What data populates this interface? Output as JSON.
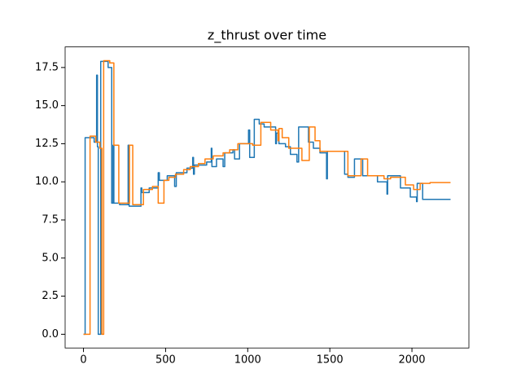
{
  "chart_data": {
    "type": "line",
    "title": "z_thrust over time",
    "xlim": [
      -111.75,
      2346.75
    ],
    "xticks": [
      0,
      500,
      1000,
      1500,
      2000
    ],
    "ylim": [
      -0.9,
      18.85
    ],
    "yticks": [
      {
        "value": 0,
        "label": "0.0"
      },
      {
        "value": 2.5,
        "label": "2.5"
      },
      {
        "value": 5,
        "label": "5.0"
      },
      {
        "value": 7.5,
        "label": "7.5"
      },
      {
        "value": 10,
        "label": "10.0"
      },
      {
        "value": 12.5,
        "label": "12.5"
      },
      {
        "value": 15,
        "label": "15.0"
      },
      {
        "value": 17.5,
        "label": "17.5"
      }
    ],
    "series": [
      {
        "color": "#1f77b4",
        "x": [
          0,
          10,
          10,
          65,
          65,
          80,
          80,
          85,
          85,
          90,
          90,
          105,
          105,
          150,
          150,
          172,
          172,
          180,
          180,
          185,
          185,
          220,
          220,
          272,
          272,
          278,
          278,
          350,
          350,
          355,
          355,
          400,
          400,
          455,
          455,
          462,
          462,
          510,
          510,
          555,
          555,
          565,
          565,
          630,
          630,
          665,
          665,
          670,
          670,
          675,
          675,
          750,
          750,
          778,
          778,
          782,
          782,
          810,
          810,
          850,
          850,
          860,
          860,
          910,
          910,
          920,
          920,
          950,
          950,
          1005,
          1005,
          1012,
          1012,
          1040,
          1040,
          1070,
          1070,
          1100,
          1100,
          1170,
          1170,
          1175,
          1175,
          1190,
          1190,
          1230,
          1230,
          1260,
          1260,
          1300,
          1300,
          1310,
          1310,
          1370,
          1370,
          1400,
          1400,
          1440,
          1440,
          1480,
          1480,
          1485,
          1485,
          1590,
          1590,
          1610,
          1610,
          1650,
          1650,
          1700,
          1700,
          1790,
          1790,
          1848,
          1848,
          1852,
          1852,
          1930,
          1930,
          1990,
          1990,
          2028,
          2028,
          2032,
          2032,
          2065,
          2065,
          2235
        ],
        "values": [
          0,
          0,
          12.9,
          12.9,
          12.6,
          12.6,
          17.0,
          17.0,
          12.3,
          12.3,
          0,
          0,
          17.9,
          17.9,
          17.5,
          17.5,
          8.6,
          8.6,
          12.4,
          12.4,
          8.6,
          8.6,
          8.5,
          8.5,
          12.4,
          12.4,
          8.4,
          8.4,
          9.6,
          9.6,
          9.3,
          9.3,
          9.6,
          9.6,
          10.6,
          10.6,
          10.1,
          10.1,
          10.4,
          10.4,
          9.7,
          9.7,
          10.6,
          10.6,
          10.9,
          10.9,
          11.6,
          11.6,
          10.5,
          10.5,
          11.1,
          11.1,
          11.3,
          11.3,
          12.2,
          12.2,
          11.0,
          11.0,
          11.5,
          11.5,
          11.0,
          11.0,
          11.9,
          11.9,
          12.1,
          12.1,
          11.5,
          11.5,
          12.5,
          12.5,
          13.4,
          13.4,
          11.6,
          11.6,
          14.1,
          14.1,
          13.8,
          13.8,
          13.6,
          13.6,
          12.5,
          12.5,
          13.2,
          13.2,
          12.5,
          12.5,
          12.3,
          12.3,
          11.8,
          11.8,
          11.3,
          11.3,
          13.6,
          13.6,
          12.6,
          12.6,
          12.2,
          12.2,
          11.9,
          11.9,
          10.2,
          10.2,
          12.0,
          12.0,
          10.5,
          10.5,
          10.3,
          10.3,
          11.5,
          11.5,
          10.4,
          10.4,
          10.0,
          10.0,
          9.2,
          9.2,
          10.4,
          10.4,
          9.6,
          9.6,
          9.0,
          9.0,
          8.7,
          8.7,
          9.9,
          9.9,
          8.85,
          8.85
        ]
      },
      {
        "color": "#ff7f0e",
        "x": [
          0,
          40,
          40,
          75,
          75,
          100,
          100,
          112,
          112,
          123,
          123,
          160,
          160,
          185,
          185,
          215,
          215,
          280,
          280,
          300,
          300,
          365,
          365,
          420,
          420,
          455,
          455,
          490,
          490,
          520,
          520,
          560,
          560,
          610,
          610,
          650,
          650,
          700,
          700,
          740,
          740,
          790,
          790,
          850,
          850,
          890,
          890,
          940,
          940,
          1030,
          1030,
          1080,
          1080,
          1140,
          1140,
          1185,
          1185,
          1190,
          1190,
          1210,
          1210,
          1250,
          1250,
          1330,
          1330,
          1375,
          1375,
          1410,
          1410,
          1440,
          1440,
          1610,
          1610,
          1690,
          1690,
          1730,
          1730,
          1830,
          1830,
          1870,
          1870,
          1960,
          1960,
          2010,
          2010,
          2050,
          2050,
          2110,
          2110,
          2235
        ],
        "values": [
          0,
          0,
          13.0,
          13.0,
          12.6,
          12.6,
          12.2,
          12.2,
          0,
          0,
          17.95,
          17.95,
          17.8,
          17.8,
          12.4,
          12.4,
          8.6,
          8.6,
          12.4,
          12.4,
          8.5,
          8.5,
          9.5,
          9.5,
          9.7,
          9.7,
          8.6,
          8.6,
          10.1,
          10.1,
          10.3,
          10.3,
          10.5,
          10.5,
          10.8,
          10.8,
          11.0,
          11.0,
          11.2,
          11.2,
          11.5,
          11.5,
          11.7,
          11.7,
          11.9,
          11.9,
          12.1,
          12.1,
          12.5,
          12.5,
          12.4,
          12.4,
          13.9,
          13.9,
          13.4,
          13.4,
          12.7,
          12.7,
          13.5,
          13.5,
          12.9,
          12.9,
          12.2,
          12.2,
          11.4,
          11.4,
          13.6,
          13.6,
          12.7,
          12.7,
          12.0,
          12.0,
          10.4,
          10.4,
          11.5,
          11.5,
          10.4,
          10.4,
          10.2,
          10.2,
          10.3,
          10.3,
          9.8,
          9.8,
          9.5,
          9.5,
          9.9,
          9.9,
          9.95,
          9.95
        ]
      }
    ]
  }
}
